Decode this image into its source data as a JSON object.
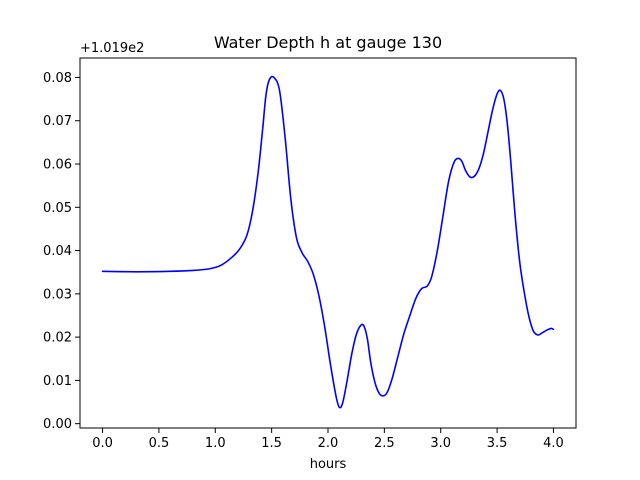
{
  "chart_data": {
    "type": "line",
    "title": "Water Depth h at gauge 130",
    "xlabel": "hours",
    "ylabel": "",
    "offset_label": "+1.019e2",
    "xlim": [
      -0.2,
      4.2
    ],
    "ylim": [
      -0.001,
      0.0845
    ],
    "xticks": [
      0.0,
      0.5,
      1.0,
      1.5,
      2.0,
      2.5,
      3.0,
      3.5,
      4.0
    ],
    "xtick_labels": [
      "0.0",
      "0.5",
      "1.0",
      "1.5",
      "2.0",
      "2.5",
      "3.0",
      "3.5",
      "4.0"
    ],
    "yticks": [
      0.0,
      0.01,
      0.02,
      0.03,
      0.04,
      0.05,
      0.06,
      0.07,
      0.08
    ],
    "ytick_labels": [
      "0.00",
      "0.01",
      "0.02",
      "0.03",
      "0.04",
      "0.05",
      "0.06",
      "0.07",
      "0.08"
    ],
    "grid": false,
    "series": [
      {
        "color": "#0000ff",
        "x": [
          0.0,
          0.3,
          0.6,
          0.8,
          0.95,
          1.05,
          1.15,
          1.22,
          1.28,
          1.33,
          1.38,
          1.42,
          1.45,
          1.48,
          1.52,
          1.57,
          1.62,
          1.67,
          1.72,
          1.77,
          1.82,
          1.87,
          1.92,
          1.97,
          2.02,
          2.07,
          2.1,
          2.13,
          2.17,
          2.21,
          2.25,
          2.29,
          2.32,
          2.35,
          2.38,
          2.42,
          2.46,
          2.5,
          2.53,
          2.57,
          2.62,
          2.67,
          2.72,
          2.78,
          2.83,
          2.88,
          2.92,
          2.97,
          3.02,
          3.07,
          3.12,
          3.16,
          3.19,
          3.22,
          3.26,
          3.3,
          3.34,
          3.38,
          3.42,
          3.46,
          3.5,
          3.53,
          3.56,
          3.59,
          3.62,
          3.66,
          3.7,
          3.74,
          3.78,
          3.82,
          3.86,
          3.9,
          3.94,
          3.98,
          4.0
        ],
        "y": [
          0.0352,
          0.0351,
          0.0352,
          0.0354,
          0.0358,
          0.0366,
          0.0385,
          0.0405,
          0.0435,
          0.049,
          0.058,
          0.068,
          0.076,
          0.0795,
          0.08,
          0.077,
          0.066,
          0.052,
          0.043,
          0.0395,
          0.0375,
          0.0345,
          0.0295,
          0.0225,
          0.014,
          0.0065,
          0.0038,
          0.0048,
          0.01,
          0.016,
          0.0205,
          0.0227,
          0.0225,
          0.0195,
          0.014,
          0.0092,
          0.0068,
          0.0065,
          0.0075,
          0.0105,
          0.0155,
          0.0205,
          0.0245,
          0.029,
          0.0312,
          0.0318,
          0.034,
          0.04,
          0.048,
          0.056,
          0.0605,
          0.0613,
          0.0605,
          0.0585,
          0.057,
          0.0572,
          0.059,
          0.0625,
          0.0675,
          0.0725,
          0.0762,
          0.077,
          0.075,
          0.0695,
          0.061,
          0.048,
          0.0375,
          0.0305,
          0.025,
          0.0215,
          0.0205,
          0.021,
          0.0216,
          0.022,
          0.0218
        ]
      }
    ]
  }
}
